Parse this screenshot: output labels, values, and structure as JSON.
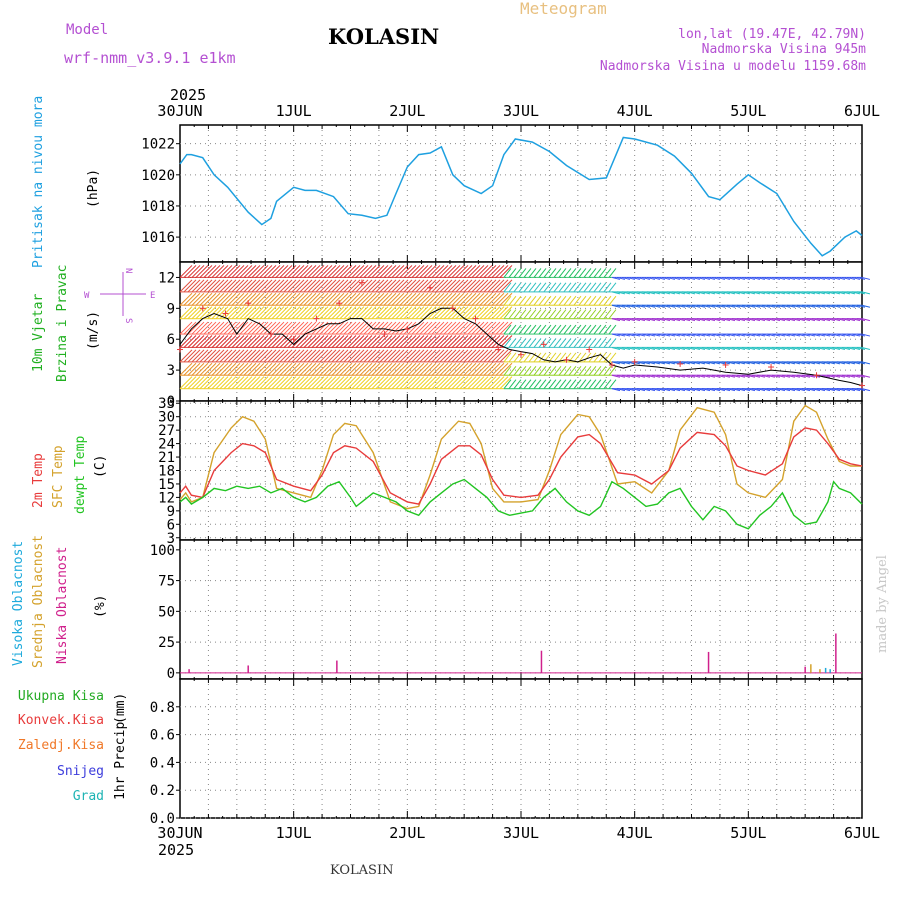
{
  "header": {
    "model_label": "Model",
    "model_name": "wrf-nmm_v3.9.1 e1km",
    "station": "KOLASIN",
    "product": "Meteogram",
    "coords": "lon,lat (19.47E, 42.79N)",
    "altitude": "Nadmorska Visina 945m",
    "model_altitude": "Nadmorska Visina u modelu 1159.68m",
    "footer_station": "KOLASIN",
    "credit": "made by Angel"
  },
  "time_axis": {
    "year": "2025",
    "labels": [
      "30JUN",
      "1JUL",
      "2JUL",
      "3JUL",
      "4JUL",
      "5JUL",
      "6JUL"
    ]
  },
  "colors": {
    "pressure": "#1ea0e0",
    "wind_label": "#20b020",
    "temp_2m": "#e83c3c",
    "temp_sfc": "#d4a22c",
    "dewpoint": "#22c422",
    "cloud_high": "#1eaadc",
    "cloud_mid": "#d4a22c",
    "cloud_low": "#d0208c",
    "precip_total": "#22aa22",
    "precip_conv": "#e83c3c",
    "precip_frz": "#f07828",
    "precip_snow": "#3c3cdc",
    "precip_grad": "#1eb4b4",
    "compass": "#b450d2",
    "credit": "#c8c8c8"
  },
  "chart_data": [
    {
      "type": "line",
      "title": "Pritisak na nivou mora",
      "ylabel": "(hPa)",
      "ylim": [
        1014.4,
        1023.2
      ],
      "yticks": [
        1016,
        1018,
        1020,
        1022
      ],
      "grid": true,
      "x_unit": "days since 30JUN 00UTC",
      "series": [
        {
          "x": [
            0,
            0.06,
            0.1,
            0.2,
            0.3,
            0.42,
            0.6,
            0.72,
            0.8,
            0.85,
            1.0,
            1.1,
            1.2,
            1.35,
            1.48,
            1.6,
            1.72,
            1.82,
            1.9,
            2.0,
            2.1,
            2.2,
            2.3,
            2.4,
            2.5,
            2.65,
            2.75,
            2.85,
            2.95,
            3.1,
            3.25,
            3.4,
            3.6,
            3.75,
            3.9,
            4.0,
            4.2,
            4.35,
            4.5,
            4.65,
            4.75,
            4.9,
            5.0,
            5.1,
            5.25,
            5.4,
            5.55,
            5.65,
            5.72,
            5.85,
            5.95,
            6.0
          ],
          "y": [
            1020.7,
            1021.3,
            1021.3,
            1021.1,
            1020.0,
            1019.2,
            1017.6,
            1016.8,
            1017.2,
            1018.3,
            1019.2,
            1019.0,
            1019.0,
            1018.6,
            1017.5,
            1017.4,
            1017.2,
            1017.4,
            1018.8,
            1020.5,
            1021.3,
            1021.4,
            1021.8,
            1020.0,
            1019.3,
            1018.8,
            1019.3,
            1021.3,
            1022.3,
            1022.1,
            1021.5,
            1020.6,
            1019.7,
            1019.8,
            1022.4,
            1022.3,
            1021.9,
            1021.2,
            1020.1,
            1018.6,
            1018.4,
            1019.4,
            1020.0,
            1019.5,
            1018.8,
            1017.0,
            1015.6,
            1014.8,
            1015.1,
            1016.0,
            1016.4,
            1016.1
          ]
        }
      ]
    },
    {
      "type": "line",
      "title": "10m Vjetar Brzina i Pravac",
      "ylabel": "(m/s)",
      "ylim": [
        0,
        13.5
      ],
      "yticks": [
        0,
        3,
        6,
        9,
        12
      ],
      "grid": true,
      "compass": {
        "n": "N",
        "e": "E",
        "w": "W",
        "s": "S"
      },
      "series": [
        {
          "name": "speed",
          "x": [
            0,
            0.1,
            0.2,
            0.3,
            0.42,
            0.5,
            0.6,
            0.7,
            0.75,
            0.8,
            0.9,
            1.0,
            1.1,
            1.2,
            1.3,
            1.4,
            1.5,
            1.6,
            1.7,
            1.8,
            1.9,
            2.0,
            2.1,
            2.2,
            2.3,
            2.4,
            2.5,
            2.6,
            2.7,
            2.8,
            2.9,
            3.0,
            3.1,
            3.2,
            3.3,
            3.4,
            3.5,
            3.6,
            3.7,
            3.8,
            3.9,
            4.0,
            4.2,
            4.4,
            4.6,
            4.8,
            5.0,
            5.2,
            5.4,
            5.6,
            5.8,
            5.9,
            6.0
          ],
          "y": [
            5.5,
            7.0,
            8.0,
            8.5,
            8.0,
            6.5,
            8.0,
            7.5,
            7.0,
            6.5,
            6.5,
            5.5,
            6.5,
            7.0,
            7.5,
            7.5,
            8.0,
            8.0,
            7.0,
            7.0,
            6.8,
            7.0,
            7.5,
            8.5,
            9.0,
            9.0,
            8.0,
            7.5,
            6.5,
            5.5,
            5.0,
            4.8,
            4.6,
            4.0,
            3.8,
            4.0,
            3.8,
            4.2,
            4.5,
            3.5,
            3.2,
            3.5,
            3.3,
            3.0,
            3.2,
            2.8,
            2.6,
            3.0,
            2.8,
            2.5,
            2.0,
            1.8,
            1.5
          ]
        },
        {
          "name": "gust",
          "x": [
            0,
            0.2,
            0.4,
            0.6,
            0.8,
            1.0,
            1.2,
            1.4,
            1.6,
            1.8,
            2.0,
            2.2,
            2.4,
            2.6,
            2.8,
            3.0,
            3.2,
            3.4,
            3.6,
            3.8,
            4.0,
            4.4,
            4.8,
            5.2,
            5.6,
            6.0
          ],
          "y": [
            5.0,
            9.0,
            8.5,
            9.5,
            6.5,
            6.0,
            8.0,
            9.5,
            11.5,
            6.5,
            7.0,
            11.0,
            9.0,
            8.0,
            5.0,
            4.5,
            5.5,
            4.0,
            5.0,
            3.5,
            3.8,
            3.6,
            3.5,
            3.3,
            2.5,
            1.5
          ]
        }
      ],
      "levels": [
        1.2,
        2.5,
        3.8,
        5.2,
        6.5,
        8.0,
        9.3,
        10.6,
        12.0
      ],
      "segments": [
        {
          "day_start": 0,
          "day_end": 2.85,
          "dir": "NE-strong",
          "colors": [
            "#f0d020",
            "#e89028",
            "#e05040",
            "#d82828",
            "#ff6050"
          ]
        },
        {
          "day_start": 2.85,
          "day_end": 3.8,
          "dir": "NE",
          "colors": [
            "#30c0c0",
            "#20c060",
            "#90d020",
            "#e0d020"
          ]
        },
        {
          "day_start": 3.8,
          "day_end": 6.0,
          "dir": "E-W",
          "colors": [
            "#2060e0",
            "#20c0c0",
            "#3050f0",
            "#a030d0"
          ]
        }
      ]
    },
    {
      "type": "line",
      "title": "2m Temp / SFC Temp / dewpt Temp",
      "ylabel": "(C)",
      "ylim": [
        2.5,
        33.5
      ],
      "yticks": [
        3,
        6,
        9,
        12,
        15,
        18,
        21,
        24,
        27,
        30,
        33
      ],
      "grid": true,
      "series": [
        {
          "name": "2m Temp",
          "x": [
            0,
            0.05,
            0.1,
            0.2,
            0.3,
            0.45,
            0.55,
            0.65,
            0.75,
            0.85,
            1.0,
            1.15,
            1.25,
            1.35,
            1.45,
            1.55,
            1.7,
            1.85,
            2.0,
            2.1,
            2.2,
            2.3,
            2.45,
            2.55,
            2.65,
            2.75,
            2.85,
            3.0,
            3.15,
            3.25,
            3.35,
            3.5,
            3.6,
            3.7,
            3.85,
            4.0,
            4.15,
            4.3,
            4.4,
            4.55,
            4.7,
            4.8,
            4.9,
            5.0,
            5.15,
            5.3,
            5.4,
            5.5,
            5.6,
            5.7,
            5.8,
            5.9,
            6.0
          ],
          "y": [
            13.0,
            14.5,
            12.5,
            12.0,
            18.0,
            22.0,
            24.0,
            23.5,
            22.0,
            16.0,
            14.5,
            13.5,
            17.0,
            22.0,
            23.5,
            23.0,
            20.0,
            13.0,
            11.0,
            10.5,
            15.0,
            20.5,
            23.5,
            23.5,
            21.5,
            16.0,
            12.5,
            12.0,
            12.5,
            16.0,
            21.0,
            25.5,
            26.0,
            24.0,
            17.5,
            17.0,
            15.0,
            18.0,
            23.0,
            26.5,
            26.0,
            23.5,
            19.0,
            18.0,
            17.0,
            19.5,
            25.5,
            27.5,
            27.0,
            24.0,
            20.5,
            19.5,
            19.0
          ]
        },
        {
          "name": "SFC Temp",
          "x": [
            0,
            0.05,
            0.1,
            0.2,
            0.3,
            0.45,
            0.55,
            0.65,
            0.75,
            0.85,
            1.0,
            1.15,
            1.25,
            1.35,
            1.45,
            1.55,
            1.7,
            1.85,
            2.0,
            2.1,
            2.2,
            2.3,
            2.45,
            2.55,
            2.65,
            2.75,
            2.85,
            3.0,
            3.15,
            3.25,
            3.35,
            3.5,
            3.6,
            3.7,
            3.85,
            4.0,
            4.15,
            4.3,
            4.4,
            4.55,
            4.7,
            4.8,
            4.9,
            5.0,
            5.15,
            5.3,
            5.4,
            5.5,
            5.6,
            5.7,
            5.8,
            5.9,
            6.0
          ],
          "y": [
            11.5,
            13.0,
            11.0,
            12.0,
            22.0,
            27.5,
            30.0,
            29.0,
            25.0,
            14.0,
            13.0,
            12.0,
            18.0,
            26.0,
            28.5,
            28.0,
            22.0,
            11.0,
            9.5,
            10.0,
            17.0,
            25.0,
            29.0,
            28.5,
            24.0,
            14.0,
            11.0,
            11.0,
            11.5,
            18.0,
            26.0,
            30.5,
            30.0,
            26.0,
            15.0,
            15.5,
            13.0,
            18.0,
            27.0,
            32.0,
            31.0,
            26.0,
            15.0,
            13.0,
            12.0,
            16.0,
            29.0,
            32.5,
            31.0,
            25.0,
            20.0,
            19.0,
            19.0
          ]
        },
        {
          "name": "dewpt Temp",
          "x": [
            0,
            0.05,
            0.1,
            0.2,
            0.3,
            0.4,
            0.5,
            0.6,
            0.7,
            0.8,
            0.9,
            1.0,
            1.1,
            1.2,
            1.3,
            1.4,
            1.5,
            1.55,
            1.6,
            1.7,
            1.8,
            1.9,
            2.0,
            2.1,
            2.2,
            2.3,
            2.4,
            2.5,
            2.6,
            2.7,
            2.8,
            2.9,
            3.0,
            3.1,
            3.2,
            3.3,
            3.4,
            3.5,
            3.6,
            3.7,
            3.8,
            3.9,
            4.0,
            4.1,
            4.2,
            4.3,
            4.4,
            4.5,
            4.6,
            4.7,
            4.8,
            4.9,
            5.0,
            5.1,
            5.2,
            5.3,
            5.4,
            5.5,
            5.6,
            5.7,
            5.75,
            5.8,
            5.9,
            6.0
          ],
          "y": [
            11.0,
            12.0,
            10.5,
            12.0,
            14.0,
            13.5,
            14.5,
            14.0,
            14.5,
            13.0,
            14.0,
            12.0,
            11.0,
            12.0,
            14.5,
            15.5,
            12.0,
            10.0,
            11.0,
            13.0,
            12.0,
            11.0,
            9.0,
            8.0,
            11.0,
            13.0,
            15.0,
            16.0,
            14.0,
            12.0,
            9.0,
            8.0,
            8.5,
            9.0,
            12.0,
            14.0,
            11.0,
            9.0,
            8.0,
            10.0,
            15.5,
            14.0,
            12.0,
            10.0,
            10.5,
            13.0,
            14.0,
            10.0,
            7.0,
            10.0,
            9.0,
            6.0,
            5.0,
            8.0,
            10.0,
            13.0,
            8.0,
            6.0,
            6.5,
            11.0,
            15.5,
            14.0,
            13.0,
            10.5
          ]
        }
      ]
    },
    {
      "type": "bar",
      "title": "Visoka Oblacnost / Srednja Oblacnost / Niska Oblacnost",
      "ylabel": "(%)",
      "ylim": [
        -5,
        108
      ],
      "yticks": [
        0,
        25,
        50,
        75,
        100
      ],
      "grid": true,
      "series": [
        {
          "name": "Niska Oblacnost",
          "x": [
            0.08,
            0.6,
            1.38,
            3.18,
            4.65,
            5.5,
            5.77
          ],
          "values": [
            3,
            6,
            10,
            18,
            17,
            5,
            32
          ]
        },
        {
          "name": "Srednja Oblacnost",
          "x": [
            5.55,
            5.63
          ],
          "values": [
            7,
            3
          ]
        },
        {
          "name": "Visoka Oblacnost",
          "x": [
            5.68,
            5.72
          ],
          "values": [
            4,
            3
          ]
        }
      ]
    },
    {
      "type": "bar",
      "title": "1hr Precip",
      "ylabel": "(mm)",
      "ylim": [
        0,
        1.0
      ],
      "yticks": [
        0,
        0.2,
        0.4,
        0.6,
        0.8
      ],
      "grid": true,
      "legend": [
        "Ukupna Kisa",
        "Konvek.Kisa",
        "Zaledj.Kisa",
        "Snijeg",
        "Grad"
      ],
      "series": [
        {
          "name": "Ukupna Kisa",
          "values": []
        }
      ]
    }
  ]
}
